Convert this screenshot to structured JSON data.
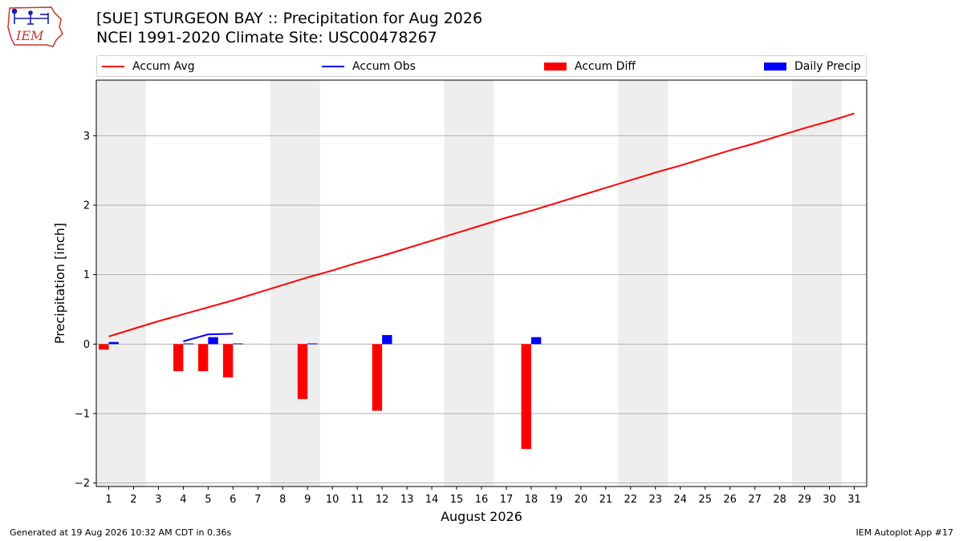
{
  "header": {
    "logo_text": "IEM",
    "title_line1": "[SUE] STURGEON BAY :: Precipitation for Aug 2026",
    "title_line2": "NCEI 1991-2020 Climate Site: USC00478267"
  },
  "footer": {
    "generated": "Generated at 19 Aug 2026 10:32 AM CDT in 0.36s",
    "app": "IEM Autoplot App #17"
  },
  "legend": {
    "items": [
      {
        "label": "Accum Avg",
        "kind": "line",
        "color": "#ff0000"
      },
      {
        "label": "Accum Obs",
        "kind": "line",
        "color": "#0000ff"
      },
      {
        "label": "Accum Diff",
        "kind": "box",
        "color": "#ff0000"
      },
      {
        "label": "Daily Precip",
        "kind": "box",
        "color": "#0000ff"
      }
    ]
  },
  "chart_data": {
    "type": "bar",
    "xlabel": "August 2026",
    "ylabel": "Precipitation [inch]",
    "xlim": [
      0.5,
      31.5
    ],
    "ylim": [
      -2.05,
      3.8
    ],
    "yticks": [
      -2,
      -1,
      0,
      1,
      2,
      3
    ],
    "ytick_labels": [
      "−2",
      "−1",
      "0",
      "1",
      "2",
      "3"
    ],
    "xticks": [
      1,
      2,
      3,
      4,
      5,
      6,
      7,
      8,
      9,
      10,
      11,
      12,
      13,
      14,
      15,
      16,
      17,
      18,
      19,
      20,
      21,
      22,
      23,
      24,
      25,
      26,
      27,
      28,
      29,
      30,
      31
    ],
    "grid": true,
    "legend_position": "top",
    "weekend_shading": [
      [
        1,
        2
      ],
      [
        8,
        9
      ],
      [
        15,
        16
      ],
      [
        22,
        23
      ],
      [
        29,
        30
      ]
    ],
    "accum_avg": {
      "name": "Accum Avg",
      "color": "#ff0000",
      "x": [
        1,
        2,
        3,
        4,
        5,
        6,
        7,
        8,
        9,
        10,
        11,
        12,
        13,
        14,
        15,
        16,
        17,
        18,
        19,
        20,
        21,
        22,
        23,
        24,
        25,
        26,
        27,
        28,
        29,
        30,
        31
      ],
      "values": [
        0.11,
        0.22,
        0.33,
        0.43,
        0.53,
        0.63,
        0.74,
        0.85,
        0.96,
        1.06,
        1.17,
        1.27,
        1.38,
        1.49,
        1.6,
        1.71,
        1.82,
        1.92,
        2.03,
        2.14,
        2.25,
        2.36,
        2.47,
        2.57,
        2.68,
        2.79,
        2.89,
        3.0,
        3.11,
        3.21,
        3.32
      ]
    },
    "accum_obs": {
      "name": "Accum Obs",
      "color": "#0000ff",
      "x": [
        4,
        5,
        6
      ],
      "values": [
        0.04,
        0.14,
        0.15
      ]
    },
    "accum_diff": {
      "name": "Accum Diff",
      "color": "#ff0000",
      "x": [
        1,
        4,
        5,
        6,
        9,
        12,
        18
      ],
      "values": [
        -0.08,
        -0.39,
        -0.39,
        -0.48,
        -0.79,
        -0.96,
        -1.51
      ]
    },
    "daily_precip": {
      "name": "Daily Precip",
      "color": "#0000ff",
      "x": [
        1,
        4,
        5,
        6,
        9,
        12,
        18
      ],
      "values": [
        0.03,
        0.01,
        0.1,
        0.01,
        0.01,
        0.13,
        0.1
      ]
    }
  }
}
